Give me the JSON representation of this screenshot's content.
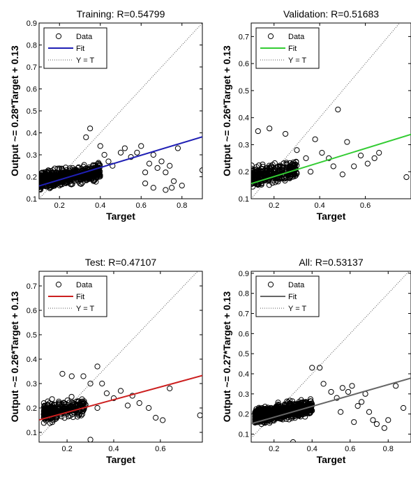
{
  "chart_data": [
    {
      "type": "scatter",
      "title": "Training: R=0.54799",
      "xlabel": "Target",
      "ylabel": "Output ~= 0.28*Target + 0.13",
      "xlim": [
        0.1,
        0.9
      ],
      "ylim": [
        0.1,
        0.9
      ],
      "xticks": [
        0.2,
        0.4,
        0.6,
        0.8
      ],
      "yticks": [
        0.1,
        0.2,
        0.3,
        0.4,
        0.5,
        0.6,
        0.7,
        0.8,
        0.9
      ],
      "fit": {
        "slope": 0.28,
        "intercept": 0.13,
        "color": "#1f1fb4"
      },
      "legend": {
        "placement": "top-left",
        "entries": [
          "Data",
          "Fit",
          "Y = T"
        ]
      },
      "cluster": {
        "x_range": [
          0.1,
          0.4
        ],
        "y_center": 0.18,
        "n": 700
      },
      "series": [
        {
          "name": "Data",
          "points": [
            [
              0.33,
              0.38
            ],
            [
              0.35,
              0.42
            ],
            [
              0.4,
              0.34
            ],
            [
              0.42,
              0.3
            ],
            [
              0.44,
              0.27
            ],
            [
              0.46,
              0.25
            ],
            [
              0.5,
              0.31
            ],
            [
              0.52,
              0.33
            ],
            [
              0.55,
              0.29
            ],
            [
              0.58,
              0.31
            ],
            [
              0.6,
              0.34
            ],
            [
              0.62,
              0.22
            ],
            [
              0.64,
              0.26
            ],
            [
              0.66,
              0.3
            ],
            [
              0.68,
              0.24
            ],
            [
              0.7,
              0.27
            ],
            [
              0.72,
              0.22
            ],
            [
              0.74,
              0.25
            ],
            [
              0.76,
              0.18
            ],
            [
              0.78,
              0.33
            ],
            [
              0.62,
              0.17
            ],
            [
              0.66,
              0.15
            ],
            [
              0.72,
              0.14
            ],
            [
              0.75,
              0.15
            ],
            [
              0.8,
              0.16
            ],
            [
              0.9,
              0.23
            ]
          ]
        }
      ]
    },
    {
      "type": "scatter",
      "title": "Validation: R=0.51683",
      "xlabel": "Target",
      "ylabel": "Output ~= 0.26*Target + 0.13",
      "xlim": [
        0.1,
        0.8
      ],
      "ylim": [
        0.1,
        0.75
      ],
      "xticks": [
        0.2,
        0.4,
        0.6
      ],
      "yticks": [
        0.1,
        0.2,
        0.3,
        0.4,
        0.5,
        0.6,
        0.7
      ],
      "fit": {
        "slope": 0.26,
        "intercept": 0.13,
        "color": "#33cc33"
      },
      "legend": {
        "placement": "top-left",
        "entries": [
          "Data",
          "Fit",
          "Y = T"
        ]
      },
      "cluster": {
        "x_range": [
          0.1,
          0.3
        ],
        "y_center": 0.18,
        "n": 300
      },
      "series": [
        {
          "name": "Data",
          "points": [
            [
              0.13,
              0.35
            ],
            [
              0.18,
              0.36
            ],
            [
              0.25,
              0.34
            ],
            [
              0.3,
              0.28
            ],
            [
              0.34,
              0.25
            ],
            [
              0.38,
              0.32
            ],
            [
              0.41,
              0.27
            ],
            [
              0.44,
              0.25
            ],
            [
              0.46,
              0.22
            ],
            [
              0.48,
              0.43
            ],
            [
              0.52,
              0.31
            ],
            [
              0.55,
              0.22
            ],
            [
              0.58,
              0.26
            ],
            [
              0.61,
              0.23
            ],
            [
              0.64,
              0.25
            ],
            [
              0.66,
              0.27
            ],
            [
              0.78,
              0.18
            ],
            [
              0.36,
              0.2
            ],
            [
              0.5,
              0.19
            ]
          ]
        }
      ]
    },
    {
      "type": "scatter",
      "title": "Test: R=0.47107",
      "xlabel": "Target",
      "ylabel": "Output ~= 0.26*Target + 0.13",
      "xlim": [
        0.08,
        0.78
      ],
      "ylim": [
        0.06,
        0.76
      ],
      "xticks": [
        0.2,
        0.4,
        0.6
      ],
      "yticks": [
        0.1,
        0.2,
        0.3,
        0.4,
        0.5,
        0.6,
        0.7
      ],
      "fit": {
        "slope": 0.26,
        "intercept": 0.13,
        "color": "#cc1f1f"
      },
      "legend": {
        "placement": "top-left",
        "entries": [
          "Data",
          "Fit",
          "Y = T"
        ]
      },
      "cluster": {
        "x_range": [
          0.1,
          0.28
        ],
        "y_center": 0.18,
        "n": 280
      },
      "series": [
        {
          "name": "Data",
          "points": [
            [
              0.18,
              0.34
            ],
            [
              0.22,
              0.33
            ],
            [
              0.27,
              0.33
            ],
            [
              0.3,
              0.3
            ],
            [
              0.33,
              0.37
            ],
            [
              0.35,
              0.3
            ],
            [
              0.37,
              0.26
            ],
            [
              0.4,
              0.24
            ],
            [
              0.43,
              0.27
            ],
            [
              0.46,
              0.21
            ],
            [
              0.48,
              0.25
            ],
            [
              0.51,
              0.22
            ],
            [
              0.55,
              0.2
            ],
            [
              0.58,
              0.16
            ],
            [
              0.61,
              0.15
            ],
            [
              0.64,
              0.28
            ],
            [
              0.77,
              0.17
            ],
            [
              0.3,
              0.07
            ],
            [
              0.33,
              0.2
            ]
          ]
        }
      ]
    },
    {
      "type": "scatter",
      "title": "All: R=0.53137",
      "xlabel": "Target",
      "ylabel": "Output ~= 0.27*Target + 0.13",
      "xlim": [
        0.08,
        0.92
      ],
      "ylim": [
        0.06,
        0.91
      ],
      "xticks": [
        0.2,
        0.4,
        0.6,
        0.8
      ],
      "yticks": [
        0.1,
        0.2,
        0.3,
        0.4,
        0.5,
        0.6,
        0.7,
        0.8,
        0.9
      ],
      "fit": {
        "slope": 0.27,
        "intercept": 0.13,
        "color": "#666666"
      },
      "legend": {
        "placement": "top-left",
        "entries": [
          "Data",
          "Fit",
          "Y = T"
        ]
      },
      "cluster": {
        "x_range": [
          0.1,
          0.4
        ],
        "y_center": 0.19,
        "n": 850
      },
      "series": [
        {
          "name": "Data",
          "points": [
            [
              0.4,
              0.43
            ],
            [
              0.44,
              0.43
            ],
            [
              0.46,
              0.35
            ],
            [
              0.5,
              0.31
            ],
            [
              0.53,
              0.28
            ],
            [
              0.56,
              0.33
            ],
            [
              0.59,
              0.31
            ],
            [
              0.61,
              0.34
            ],
            [
              0.64,
              0.24
            ],
            [
              0.66,
              0.26
            ],
            [
              0.68,
              0.3
            ],
            [
              0.7,
              0.21
            ],
            [
              0.72,
              0.17
            ],
            [
              0.74,
              0.15
            ],
            [
              0.78,
              0.13
            ],
            [
              0.8,
              0.17
            ],
            [
              0.84,
              0.34
            ],
            [
              0.88,
              0.23
            ],
            [
              0.3,
              0.06
            ],
            [
              0.62,
              0.16
            ],
            [
              0.55,
              0.21
            ]
          ]
        }
      ]
    }
  ]
}
